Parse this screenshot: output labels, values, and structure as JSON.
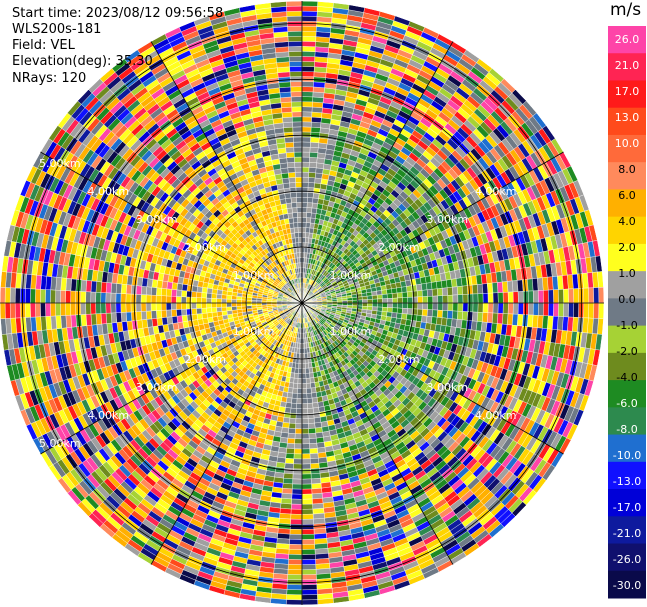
{
  "header": {
    "start_time": "Start time: 2023/08/12 09:56:58",
    "device": "WLS200s-181",
    "field": "Field: VEL",
    "elevation": "Elevation(deg): 35.30",
    "nrays": "NRays: 120"
  },
  "chart_data": {
    "type": "heatmap",
    "projection": "polar-ppi",
    "field": "VEL",
    "units": "m/s",
    "nrays": 120,
    "elevation_deg": 35.3,
    "max_range_km": 5.4,
    "range_rings_km": [
      1,
      2,
      3,
      4,
      5
    ],
    "range_ring_labels": [
      "1.00km",
      "2.00km",
      "3.00km",
      "4.00km",
      "5.00km"
    ],
    "radial_lines_deg": [
      0,
      30,
      60,
      90,
      120,
      150,
      180,
      210,
      240,
      270,
      300,
      330
    ],
    "colorbar": {
      "ticks": [
        "26.0",
        "21.0",
        "17.0",
        "13.0",
        "10.0",
        "8.0",
        "6.0",
        "4.0",
        "2.0",
        "1.0",
        "0.0",
        "-1.0",
        "-2.0",
        "-4.0",
        "-6.0",
        "-8.0",
        "-10.0",
        "-13.0",
        "-17.0",
        "-21.0",
        "-26.0",
        "-30.0"
      ],
      "bins": [
        {
          "color": "#fe44a8"
        },
        {
          "color": "#ff2453"
        },
        {
          "color": "#ff1a1a"
        },
        {
          "color": "#ff4a1b"
        },
        {
          "color": "#ff6a3a"
        },
        {
          "color": "#ff8a5c"
        },
        {
          "color": "#ffb000"
        },
        {
          "color": "#ffd400"
        },
        {
          "color": "#ffff1e"
        },
        {
          "color": "#a0a0a0"
        },
        {
          "color": "#6f7a86"
        },
        {
          "color": "#a6d235"
        },
        {
          "color": "#6e8b1e"
        },
        {
          "color": "#1e8b22"
        },
        {
          "color": "#2d8a4e"
        },
        {
          "color": "#1f6fd0"
        },
        {
          "color": "#1010ff"
        },
        {
          "color": "#0000d8"
        },
        {
          "color": "#0e1a9e"
        },
        {
          "color": "#10106e"
        },
        {
          "color": "#0a0a4a"
        }
      ]
    }
  }
}
